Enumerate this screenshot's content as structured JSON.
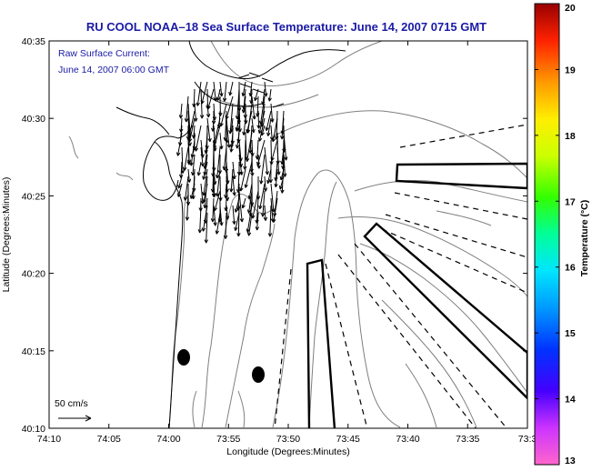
{
  "title": "RU COOL   NOAA–18  Sea Surface Temperature:  June 14, 2007 0715 GMT",
  "annotation": {
    "line1": "Raw Surface Current:",
    "line2": "June 14, 2007 06:00 GMT"
  },
  "scale_label": "50 cm/s",
  "map": {
    "xlabel": "Longitude (Degrees:Minutes)",
    "ylabel": "Latitude (Degrees:Minutes)",
    "x_ticks": [
      "74:10",
      "74:05",
      "74:00",
      "73:55",
      "73:50",
      "73:45",
      "73:40",
      "73:35",
      "73:3"
    ],
    "y_ticks": [
      "40:35",
      "40:30",
      "40:25",
      "40:20",
      "40:15",
      "40:10"
    ],
    "background_color": "#ffffff",
    "coast_color": "#000000",
    "contour_color": "#7f7f7f"
  },
  "colorbar": {
    "label": "Temperature (°C)",
    "ticks": [
      "20",
      "19",
      "18",
      "17",
      "16",
      "15",
      "14",
      "13"
    ],
    "min": 13,
    "max": 20
  }
}
